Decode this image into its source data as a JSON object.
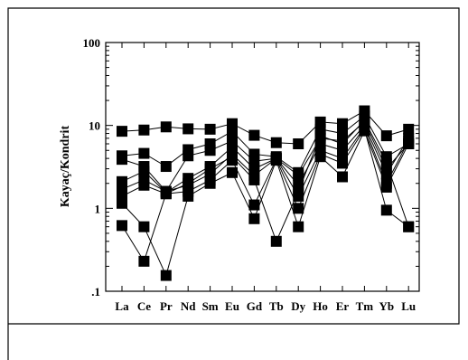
{
  "chart_data": {
    "type": "line",
    "ylabel": "Kayaç/Kondrit",
    "y_scale": "log",
    "ylim": [
      0.1,
      100
    ],
    "y_ticks": [
      "100",
      "10",
      "1",
      ".1"
    ],
    "categories": [
      "La",
      "Ce",
      "Pr",
      "Nd",
      "Sm",
      "Eu",
      "Gd",
      "Tb",
      "Dy",
      "Ho",
      "Er",
      "Tm",
      "Yb",
      "Lu"
    ],
    "marker": "square",
    "color": "#000000",
    "grid": false,
    "legend": "none",
    "series": [
      {
        "values": {
          "La": 8.5,
          "Ce": 8.8,
          "Pr": 9.6,
          "Nd": 9.1,
          "Sm": 9.0,
          "Eu": 10.5,
          "Gd": 7.6,
          "Tb": 6.2,
          "Dy": 6.0,
          "Ho": 11.0,
          "Er": 10.5,
          "Tm": 15.0,
          "Yb": 7.5,
          "Lu": 9.0
        }
      },
      {
        "values": {
          "La": 4.3,
          "Ce": 4.6,
          "Pr": 3.2,
          "Nd": 5.1,
          "Sm": 6.0,
          "Eu": 8.5,
          "Gd": 4.5,
          "Tb": 4.2,
          "Dy": 2.7,
          "Ho": 9.0,
          "Er": 8.0,
          "Tm": 13.0,
          "Yb": 4.2,
          "Lu": 6.0
        }
      },
      {
        "values": {
          "La": 3.9,
          "Ce": 3.2,
          "Pr": 1.6,
          "Nd": 4.3,
          "Sm": 5.0,
          "Eu": 6.5,
          "Gd": 3.7,
          "Tb": 4.0,
          "Dy": 2.5,
          "Ho": 7.0,
          "Er": 6.5,
          "Tm": 11.0,
          "Yb": 3.0,
          "Lu": 6.0
        }
      },
      {
        "values": {
          "La": 2.1,
          "Ce": 2.8,
          "Pr": 1.55,
          "Nd": 2.3,
          "Sm": 3.2,
          "Eu": 5.5,
          "Gd": 3.0,
          "Tb": 4.0,
          "Dy": 1.9,
          "Ho": 6.0,
          "Er": 5.0,
          "Tm": 10.0,
          "Yb": 2.6,
          "Lu": 7.0
        }
      },
      {
        "values": {
          "La": 1.7,
          "Ce": 2.2,
          "Pr": 1.6,
          "Nd": 1.9,
          "Sm": 2.6,
          "Eu": 4.5,
          "Gd": 2.5,
          "Tb": 4.0,
          "Dy": 1.4,
          "Ho": 5.0,
          "Er": 4.0,
          "Tm": 9.5,
          "Yb": 2.0,
          "Lu": 6.5
        }
      },
      {
        "values": {
          "La": 1.4,
          "Ce": 1.9,
          "Pr": 1.5,
          "Nd": 1.6,
          "Sm": 2.2,
          "Eu": 3.8,
          "Gd": 1.1,
          "Tb": 3.9,
          "Dy": 1.0,
          "Ho": 4.5,
          "Er": 3.5,
          "Tm": 9.0,
          "Yb": 0.95,
          "Lu": 0.6
        }
      },
      {
        "values": {
          "La": 1.15,
          "Ce": 0.6,
          "Pr": 0.155,
          "Nd": 1.4,
          "Sm": 2.0,
          "Eu": 2.7,
          "Gd": 0.75,
          "Tb": 3.8,
          "Dy": 0.6,
          "Ho": 4.2,
          "Er": 2.4,
          "Tm": 8.6,
          "Yb": 1.8,
          "Lu": 6.0
        }
      },
      {
        "values": {
          "La": 0.62,
          "Ce": 0.23,
          "Pr": 1.5,
          "Nd": 2.0,
          "Sm": 3.0,
          "Eu": 4.2,
          "Gd": 2.2,
          "Tb": 0.4,
          "Dy": 1.6,
          "Ho": 7.5,
          "Er": 6.0,
          "Tm": 11.5,
          "Yb": 3.5,
          "Lu": 0.6
        }
      }
    ]
  }
}
